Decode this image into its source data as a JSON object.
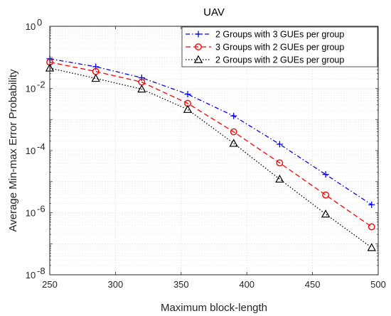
{
  "chart_data": {
    "type": "line",
    "title": "UAV",
    "xlabel": "Maximum block-length",
    "ylabel": "Average Min-max Error Probability",
    "x": [
      250,
      285,
      320,
      355,
      390,
      425,
      460,
      495
    ],
    "xlim": [
      250,
      500
    ],
    "ylim": [
      1e-08,
      1
    ],
    "yscale": "log",
    "xticks": [
      250,
      300,
      350,
      400,
      450,
      500
    ],
    "yticks": [
      {
        "value": 1e-08,
        "base": "10",
        "exp": "-8"
      },
      {
        "value": 1e-06,
        "base": "10",
        "exp": "-6"
      },
      {
        "value": 0.0001,
        "base": "10",
        "exp": "-4"
      },
      {
        "value": 0.01,
        "base": "10",
        "exp": "-2"
      },
      {
        "value": 1,
        "base": "10",
        "exp": "0"
      }
    ],
    "grid": true,
    "legend_position": "top-right",
    "series": [
      {
        "name": "2 Groups with 3 GUEs per group",
        "color": "#0000ff",
        "line_style": "dash-dot",
        "marker": "plus",
        "values": [
          0.09,
          0.05,
          0.022,
          0.0065,
          0.0013,
          0.00016,
          1.7e-05,
          1.8e-06
        ]
      },
      {
        "name": "3 Groups with 2 GUEs per group",
        "color": "#ff0000",
        "line_style": "dashed",
        "marker": "circle",
        "values": [
          0.07,
          0.035,
          0.016,
          0.0033,
          0.0004,
          4e-05,
          3.7e-06,
          3.5e-07
        ]
      },
      {
        "name": "2 Groups with 2 GUEs per group",
        "color": "#000000",
        "line_style": "dotted",
        "marker": "triangle",
        "values": [
          0.045,
          0.021,
          0.0095,
          0.0021,
          0.00017,
          1.2e-05,
          9e-07,
          7.5e-08
        ]
      }
    ]
  }
}
